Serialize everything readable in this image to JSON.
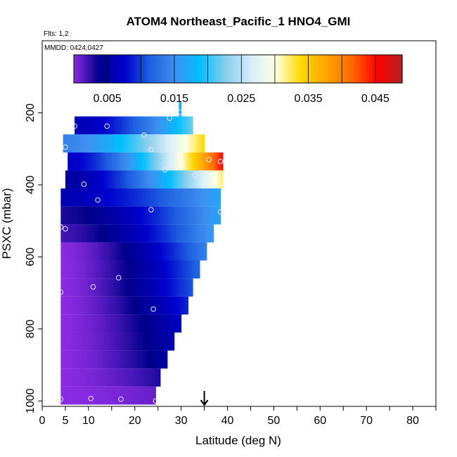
{
  "chart_data": {
    "type": "heatmap",
    "title": "ATOM4 Northeast_Pacific_1 HNO4_GMI",
    "flights_label": "Flts: 1,2",
    "mmdd_label": "MMDD: 0424,0427",
    "xlabel": "Latitude (deg N)",
    "ylabel": "PSXC (mbar)",
    "xlim": [
      0,
      85
    ],
    "ylim": [
      1015,
      0
    ],
    "x_ticks": [
      0,
      5,
      10,
      20,
      30,
      40,
      50,
      60,
      70,
      80
    ],
    "y_ticks": [
      200,
      400,
      600,
      800,
      1000
    ],
    "marker_latitude": 35,
    "colorbar": {
      "min": 0.0,
      "max": 0.049,
      "tick_values": [
        0.005,
        0.015,
        0.025,
        0.035,
        0.045
      ],
      "tick_labels": [
        "0.005",
        "0.015",
        "0.025",
        "0.035",
        "0.045"
      ],
      "colors": [
        "#8a2be2",
        "#00008b",
        "#0000cd",
        "#1e5fe0",
        "#3f8fef",
        "#00bfff",
        "#87ceeb",
        "#d6ecfa",
        "#ffffe0",
        "#ffd700",
        "#ffa500",
        "#ff6a00",
        "#ff0000",
        "#b22222"
      ]
    },
    "bands": [
      {
        "p_top": 170,
        "p_bot": 210,
        "lat_start": 29.5,
        "lat_end": 30,
        "v_start": 0.018,
        "v_end": 0.018
      },
      {
        "p_top": 210,
        "p_bot": 260,
        "lat_start": 7,
        "lat_end": 32.5,
        "v_start": 0.006,
        "v_end": 0.022
      },
      {
        "p_top": 260,
        "p_bot": 310,
        "lat_start": 4.5,
        "lat_end": 35,
        "v_start": 0.014,
        "v_end": 0.034
      },
      {
        "p_top": 310,
        "p_bot": 360,
        "lat_start": 5.5,
        "lat_end": 39,
        "v_start": 0.007,
        "v_end": 0.045
      },
      {
        "p_top": 360,
        "p_bot": 410,
        "lat_start": 5,
        "lat_end": 39,
        "v_start": 0.005,
        "v_end": 0.032
      },
      {
        "p_top": 410,
        "p_bot": 460,
        "lat_start": 4,
        "lat_end": 38.5,
        "v_start": 0.006,
        "v_end": 0.017
      },
      {
        "p_top": 460,
        "p_bot": 510,
        "lat_start": 4,
        "lat_end": 38.5,
        "v_start": 0.003,
        "v_end": 0.017
      },
      {
        "p_top": 510,
        "p_bot": 560,
        "lat_start": 4,
        "lat_end": 37,
        "v_start": 0.002,
        "v_end": 0.016
      },
      {
        "p_top": 560,
        "p_bot": 610,
        "lat_start": 4,
        "lat_end": 35.5,
        "v_start": 0.0,
        "v_end": 0.014
      },
      {
        "p_top": 610,
        "p_bot": 660,
        "lat_start": 4,
        "lat_end": 34,
        "v_start": 0.0,
        "v_end": 0.012
      },
      {
        "p_top": 660,
        "p_bot": 710,
        "lat_start": 4,
        "lat_end": 32.5,
        "v_start": 0.0,
        "v_end": 0.011
      },
      {
        "p_top": 710,
        "p_bot": 760,
        "lat_start": 4,
        "lat_end": 31.5,
        "v_start": 0.0,
        "v_end": 0.009
      },
      {
        "p_top": 760,
        "p_bot": 810,
        "lat_start": 4,
        "lat_end": 30,
        "v_start": 0.0,
        "v_end": 0.007
      },
      {
        "p_top": 810,
        "p_bot": 860,
        "lat_start": 4,
        "lat_end": 28.5,
        "v_start": 0.0,
        "v_end": 0.006
      },
      {
        "p_top": 860,
        "p_bot": 910,
        "lat_start": 4,
        "lat_end": 27,
        "v_start": 0.0,
        "v_end": 0.005
      },
      {
        "p_top": 910,
        "p_bot": 960,
        "lat_start": 4,
        "lat_end": 25.5,
        "v_start": 0.0,
        "v_end": 0.003
      },
      {
        "p_top": 960,
        "p_bot": 1010,
        "lat_start": 4,
        "lat_end": 24.5,
        "v_start": 0.0,
        "v_end": 0.001
      }
    ],
    "sample_points": [
      {
        "lat": 29.8,
        "p": 198
      },
      {
        "lat": 27.5,
        "p": 215
      },
      {
        "lat": 7,
        "p": 237
      },
      {
        "lat": 14,
        "p": 237
      },
      {
        "lat": 22,
        "p": 262
      },
      {
        "lat": 5,
        "p": 295
      },
      {
        "lat": 23.5,
        "p": 302
      },
      {
        "lat": 26.5,
        "p": 358
      },
      {
        "lat": 33,
        "p": 373
      },
      {
        "lat": 36,
        "p": 330
      },
      {
        "lat": 38.5,
        "p": 335
      },
      {
        "lat": 9,
        "p": 398
      },
      {
        "lat": 12,
        "p": 442
      },
      {
        "lat": 23.5,
        "p": 469
      },
      {
        "lat": 38.5,
        "p": 475
      },
      {
        "lat": 4,
        "p": 517
      },
      {
        "lat": 5,
        "p": 522
      },
      {
        "lat": 4,
        "p": 698
      },
      {
        "lat": 11,
        "p": 683
      },
      {
        "lat": 16.5,
        "p": 658
      },
      {
        "lat": 24,
        "p": 745
      },
      {
        "lat": 4,
        "p": 995
      },
      {
        "lat": 10.5,
        "p": 993
      },
      {
        "lat": 17,
        "p": 995
      },
      {
        "lat": 24.5,
        "p": 1000
      }
    ]
  }
}
